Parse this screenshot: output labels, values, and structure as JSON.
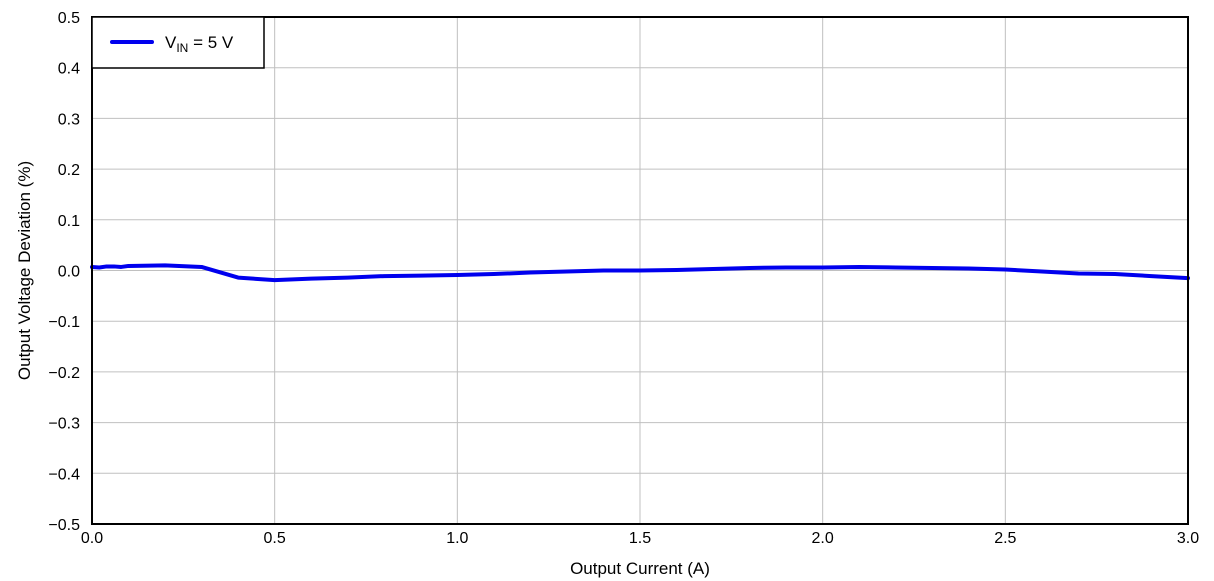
{
  "chart_data": {
    "type": "line",
    "title": "",
    "xlabel": "Output Current (A)",
    "ylabel": "Output Voltage Deviation (%)",
    "xlim": [
      0,
      3
    ],
    "ylim": [
      -0.5,
      0.5
    ],
    "x_ticks": [
      "0.0",
      "0.5",
      "1.0",
      "1.5",
      "2.0",
      "2.5",
      "3.0"
    ],
    "y_ticks": [
      "−0.5",
      "−0.4",
      "−0.3",
      "−0.2",
      "−0.1",
      "0.0",
      "0.1",
      "0.2",
      "0.3",
      "0.4",
      "0.5"
    ],
    "grid": true,
    "legend_position": "top-left",
    "series": [
      {
        "legend": {
          "main": "V",
          "sub": "IN",
          "rest": " = 5 V"
        },
        "color": "#0000ee",
        "x": [
          0,
          0.02,
          0.04,
          0.06,
          0.08,
          0.1,
          0.2,
          0.3,
          0.4,
          0.5,
          0.6,
          0.7,
          0.8,
          0.9,
          1.0,
          1.1,
          1.2,
          1.3,
          1.4,
          1.5,
          1.6,
          1.7,
          1.8,
          1.9,
          2.0,
          2.1,
          2.2,
          2.3,
          2.4,
          2.5,
          2.6,
          2.7,
          2.8,
          2.9,
          3.0
        ],
        "y": [
          0.007,
          0.006,
          0.008,
          0.008,
          0.007,
          0.009,
          0.01,
          0.007,
          -0.014,
          -0.019,
          -0.016,
          -0.014,
          -0.011,
          -0.01,
          -0.009,
          -0.007,
          -0.004,
          -0.002,
          0.0,
          0.0,
          0.001,
          0.003,
          0.005,
          0.006,
          0.006,
          0.007,
          0.006,
          0.005,
          0.004,
          0.002,
          -0.002,
          -0.006,
          -0.007,
          -0.011,
          -0.015
        ]
      }
    ]
  }
}
